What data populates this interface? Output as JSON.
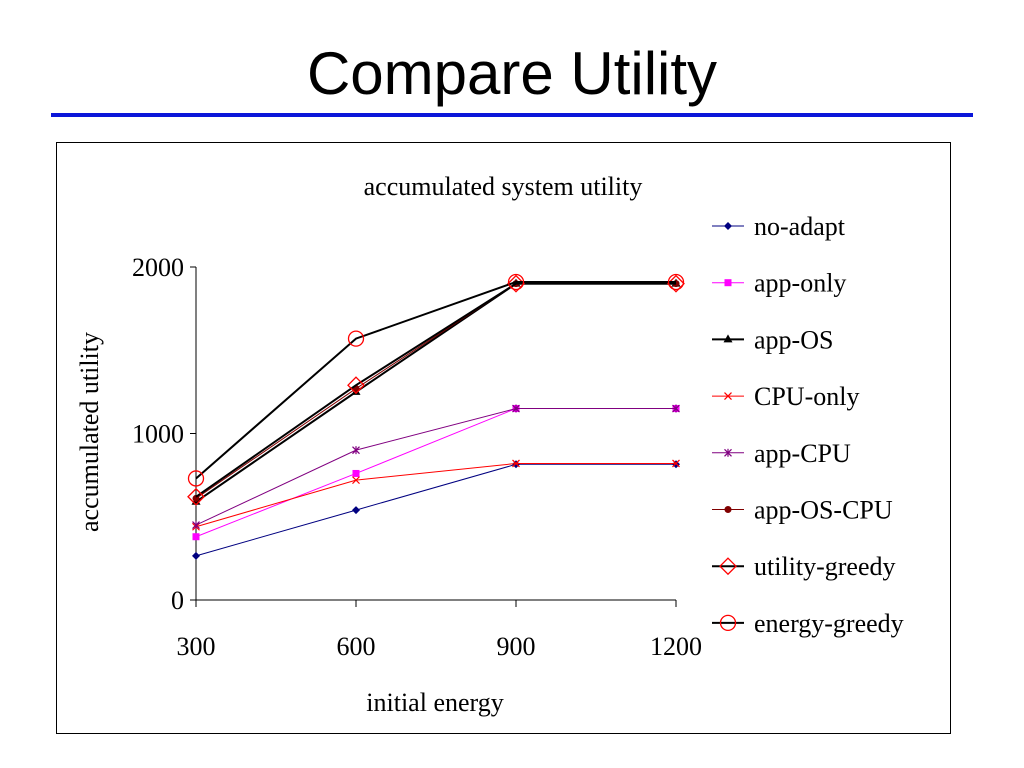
{
  "slide": {
    "title": "Compare Utility",
    "rule_color": "#0b16d9"
  },
  "chart_data": {
    "type": "line",
    "title": "accumulated system utility",
    "xlabel": "initial energy",
    "ylabel": "accumulated utility",
    "x": [
      300,
      600,
      900,
      1200
    ],
    "x_tick_labels": [
      "300",
      "600",
      "900",
      "1200"
    ],
    "y_ticks": [
      0,
      1000,
      2000
    ],
    "ylim": [
      0,
      2000
    ],
    "grid": false,
    "legend_position": "right",
    "series": [
      {
        "name": "no-adapt",
        "values": [
          265,
          540,
          815,
          815
        ],
        "color": "#000080",
        "marker": "diamond"
      },
      {
        "name": "app-only",
        "values": [
          380,
          760,
          1150,
          1150
        ],
        "color": "#ff00ff",
        "marker": "square"
      },
      {
        "name": "app-OS",
        "values": [
          590,
          1250,
          1900,
          1900
        ],
        "color": "#000000",
        "marker": "triangle"
      },
      {
        "name": "CPU-only",
        "values": [
          440,
          720,
          820,
          820
        ],
        "color": "#ff0000",
        "marker": "x"
      },
      {
        "name": "app-CPU",
        "values": [
          450,
          900,
          1150,
          1150
        ],
        "color": "#800080",
        "marker": "star"
      },
      {
        "name": "app-OS-CPU",
        "values": [
          610,
          1270,
          1900,
          1900
        ],
        "color": "#800000",
        "marker": "dot"
      },
      {
        "name": "utility-greedy",
        "values": [
          620,
          1290,
          1900,
          1900
        ],
        "color": "#000000",
        "marker": "open-diamond",
        "marker_color": "#ff0000"
      },
      {
        "name": "energy-greedy",
        "values": [
          730,
          1570,
          1910,
          1910
        ],
        "color": "#000000",
        "marker": "open-circle",
        "marker_color": "#ff0000"
      }
    ]
  }
}
